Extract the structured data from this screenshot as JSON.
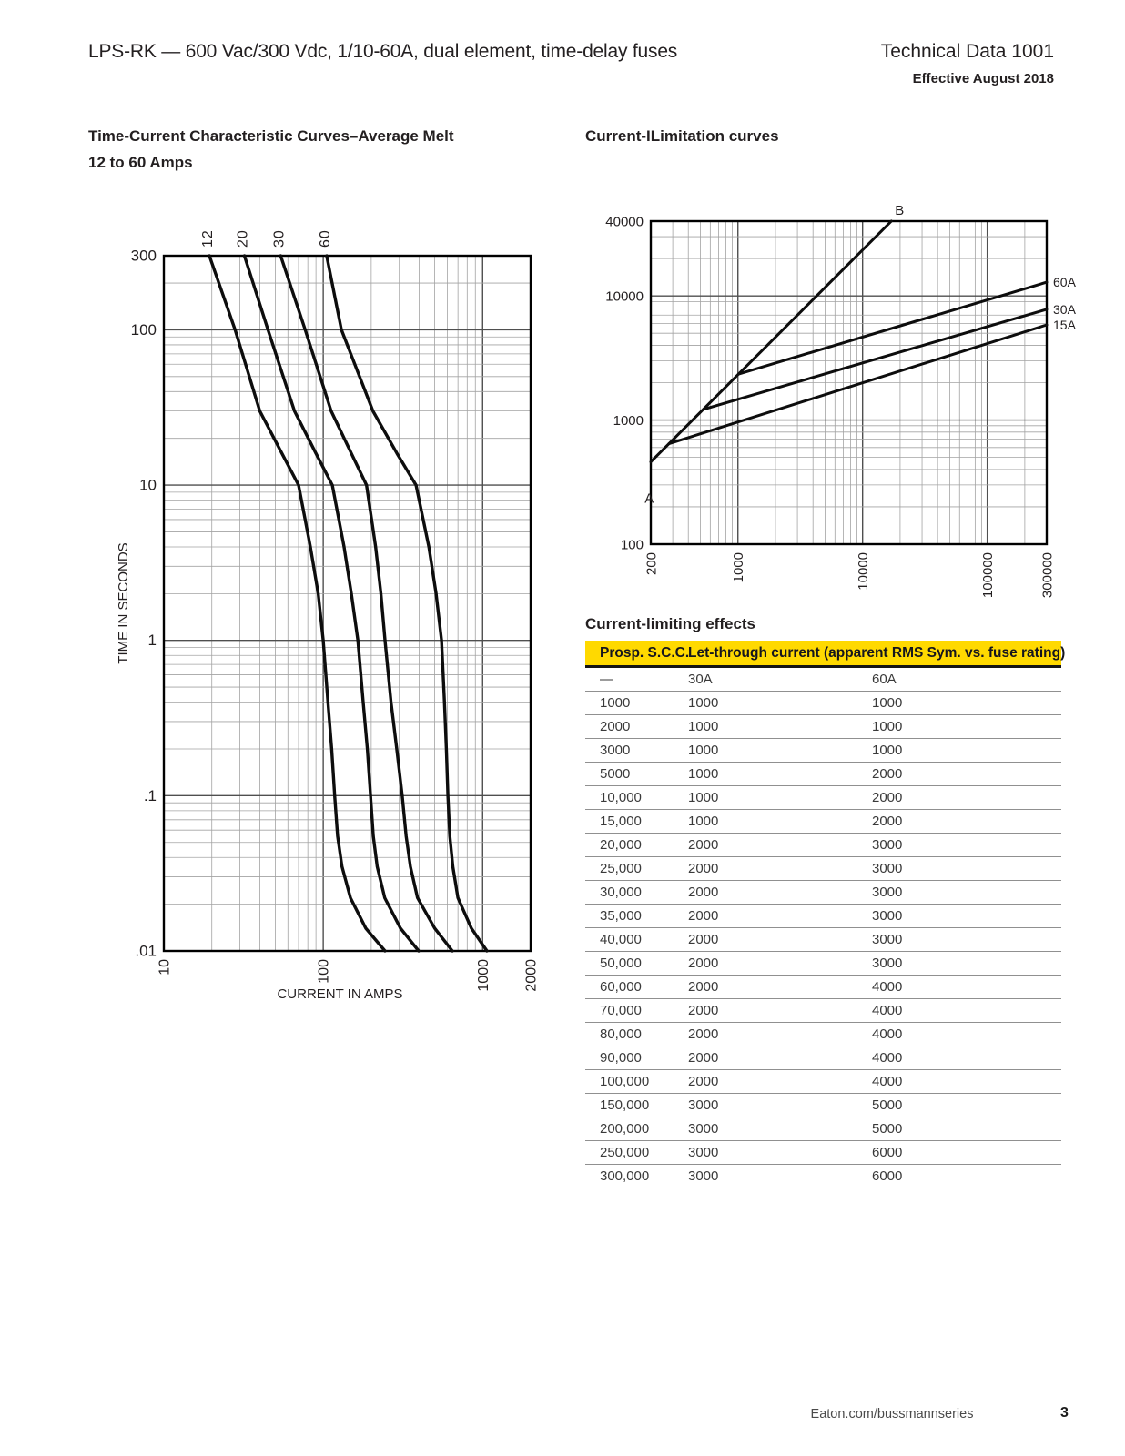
{
  "header": {
    "title": "LPS-RK — 600 Vac/300 Vdc, 1/10-60A, dual element, time-delay fuses",
    "doc_number": "Technical Data 1001",
    "effective": "Effective August 2018"
  },
  "footer": {
    "url": "Eaton.com/bussmannseries",
    "page": "3"
  },
  "colors": {
    "accent_yellow": "#ffd900",
    "header_text_on_yellow": "#15151e",
    "ink": "#231f20",
    "curve": "#0d0d0d",
    "grid_major": "#4f4f4f",
    "grid_minor": "#a3a3a3",
    "plot_border": "#000000"
  },
  "left_chart": {
    "title_line1": "Time-Current Characteristic Curves–Average Melt",
    "title_line2": "12 to 60 Amps"
  },
  "right_chart": {
    "title": "Current-ILimitation curves"
  },
  "limit_table": {
    "title": "Current-limiting effects",
    "col1_header": "Prosp. S.C.C.",
    "col2_header": "Let-through current (apparent RMS Sym. vs. fuse rating)",
    "subheader": [
      "—",
      "30A",
      "60A"
    ],
    "rows": [
      [
        "1000",
        "1000",
        "1000"
      ],
      [
        "2000",
        "1000",
        "1000"
      ],
      [
        "3000",
        "1000",
        "1000"
      ],
      [
        "5000",
        "1000",
        "2000"
      ],
      [
        "10,000",
        "1000",
        "2000"
      ],
      [
        "15,000",
        "1000",
        "2000"
      ],
      [
        "20,000",
        "2000",
        "3000"
      ],
      [
        "25,000",
        "2000",
        "3000"
      ],
      [
        "30,000",
        "2000",
        "3000"
      ],
      [
        "35,000",
        "2000",
        "3000"
      ],
      [
        "40,000",
        "2000",
        "3000"
      ],
      [
        "50,000",
        "2000",
        "3000"
      ],
      [
        "60,000",
        "2000",
        "4000"
      ],
      [
        "70,000",
        "2000",
        "4000"
      ],
      [
        "80,000",
        "2000",
        "4000"
      ],
      [
        "90,000",
        "2000",
        "4000"
      ],
      [
        "100,000",
        "2000",
        "4000"
      ],
      [
        "150,000",
        "3000",
        "5000"
      ],
      [
        "200,000",
        "3000",
        "5000"
      ],
      [
        "250,000",
        "3000",
        "6000"
      ],
      [
        "300,000",
        "3000",
        "6000"
      ]
    ]
  },
  "chart_data": [
    {
      "type": "line",
      "id": "time-current-curves",
      "title": "Time-Current Characteristic Curves–Average Melt",
      "subtitle": "12 to 60 Amps",
      "xlabel": "CURRENT IN AMPS",
      "ylabel": "TIME IN SECONDS",
      "xscale": "log",
      "yscale": "log",
      "xlim": [
        10,
        2000
      ],
      "ylim": [
        0.01,
        300
      ],
      "grid": true,
      "x_ticks": [
        {
          "v": 10,
          "label": "10"
        },
        {
          "v": 100,
          "label": "100"
        },
        {
          "v": 1000,
          "label": "1000"
        },
        {
          "v": 2000,
          "label": "2000"
        }
      ],
      "y_ticks": [
        {
          "v": 300,
          "label": "300"
        },
        {
          "v": 100,
          "label": "100"
        },
        {
          "v": 10,
          "label": "10"
        },
        {
          "v": 1,
          "label": "1"
        },
        {
          "v": 0.1,
          "label": ".1"
        },
        {
          "v": 0.01,
          "label": ".01"
        }
      ],
      "series": [
        {
          "name": "12",
          "points": [
            [
              19.3,
              300
            ],
            [
              28,
              100
            ],
            [
              40,
              30
            ],
            [
              55,
              16
            ],
            [
              70,
              10
            ],
            [
              83,
              4
            ],
            [
              93,
              2
            ],
            [
              100,
              1
            ],
            [
              107,
              0.4
            ],
            [
              113,
              0.2
            ],
            [
              118,
              0.1
            ],
            [
              123,
              0.055
            ],
            [
              131,
              0.035
            ],
            [
              148,
              0.022
            ],
            [
              185,
              0.014
            ],
            [
              244,
              0.01
            ]
          ]
        },
        {
          "name": "20",
          "points": [
            [
              32,
              300
            ],
            [
              45,
              100
            ],
            [
              66,
              30
            ],
            [
              90,
              16
            ],
            [
              114,
              10
            ],
            [
              135,
              4
            ],
            [
              150,
              2
            ],
            [
              165,
              1
            ],
            [
              178,
              0.4
            ],
            [
              189,
              0.2
            ],
            [
              198,
              0.1
            ],
            [
              206,
              0.055
            ],
            [
              218,
              0.035
            ],
            [
              243,
              0.022
            ],
            [
              305,
              0.014
            ],
            [
              397,
              0.01
            ]
          ]
        },
        {
          "name": "30",
          "points": [
            [
              54,
              300
            ],
            [
              77,
              100
            ],
            [
              112,
              30
            ],
            [
              150,
              16
            ],
            [
              187,
              10
            ],
            [
              213,
              4
            ],
            [
              230,
              2
            ],
            [
              244,
              1
            ],
            [
              266,
              0.4
            ],
            [
              289,
              0.2
            ],
            [
              313,
              0.1
            ],
            [
              331,
              0.055
            ],
            [
              352,
              0.035
            ],
            [
              390,
              0.022
            ],
            [
              500,
              0.014
            ],
            [
              646,
              0.01
            ]
          ]
        },
        {
          "name": "60",
          "points": [
            [
              105,
              300
            ],
            [
              130,
              100
            ],
            [
              205,
              30
            ],
            [
              290,
              16
            ],
            [
              382,
              10
            ],
            [
              460,
              4
            ],
            [
              510,
              2
            ],
            [
              552,
              1
            ],
            [
              576,
              0.4
            ],
            [
              592,
              0.2
            ],
            [
              605,
              0.1
            ],
            [
              622,
              0.055
            ],
            [
              650,
              0.035
            ],
            [
              700,
              0.022
            ],
            [
              850,
              0.014
            ],
            [
              1064,
              0.01
            ]
          ]
        }
      ]
    },
    {
      "type": "line",
      "id": "current-limitation-curves",
      "title": "Current-ILimitation curves",
      "xlabel": "",
      "ylabel": "",
      "xscale": "log",
      "yscale": "log",
      "xlim": [
        200,
        300000
      ],
      "ylim": [
        100,
        40000
      ],
      "grid": true,
      "x_ticks": [
        {
          "v": 200,
          "label": "200"
        },
        {
          "v": 1000,
          "label": "1000"
        },
        {
          "v": 10000,
          "label": "10000"
        },
        {
          "v": 100000,
          "label": "100000"
        },
        {
          "v": 300000,
          "label": "300000"
        }
      ],
      "y_ticks": [
        {
          "v": 40000,
          "label": "40000"
        },
        {
          "v": 10000,
          "label": "10000"
        },
        {
          "v": 1000,
          "label": "1000"
        },
        {
          "v": 100,
          "label": "100"
        }
      ],
      "series": [
        {
          "name": "B",
          "label_at": "end",
          "points": [
            [
              200,
              460
            ],
            [
              17000,
              40000
            ]
          ]
        },
        {
          "name": "60A",
          "label_at": "right",
          "points": [
            [
              1020,
              2350
            ],
            [
              300000,
              12900
            ]
          ]
        },
        {
          "name": "30A",
          "label_at": "right",
          "points": [
            [
              530,
              1220
            ],
            [
              300000,
              7800
            ]
          ]
        },
        {
          "name": "15A",
          "label_at": "right",
          "points": [
            [
              280,
              645
            ],
            [
              300000,
              5840
            ]
          ]
        }
      ],
      "annotations": [
        {
          "text": "A",
          "x": 215,
          "y": 235
        }
      ]
    }
  ]
}
